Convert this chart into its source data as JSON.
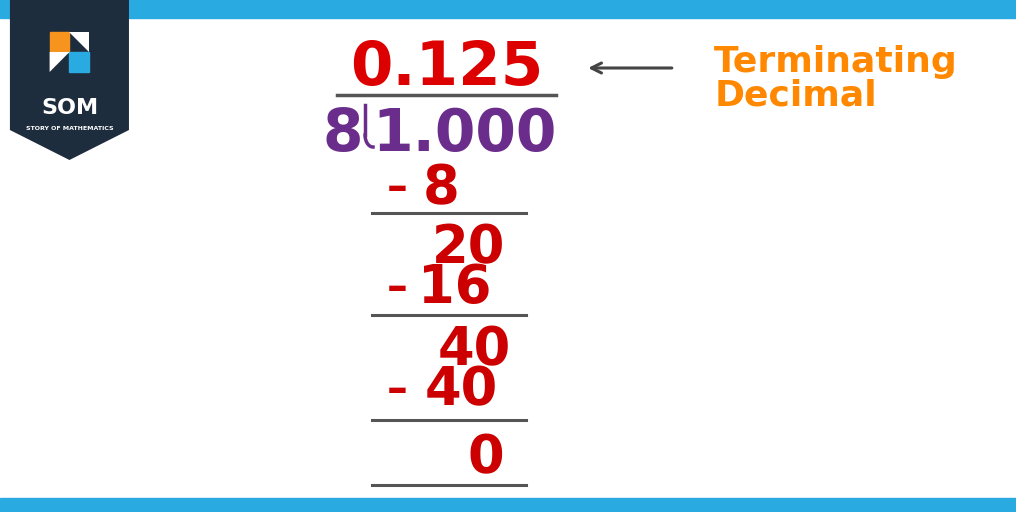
{
  "white_bg": "#ffffff",
  "title_color": "#dd0000",
  "divisor_color": "#6b2d8b",
  "dividend_color": "#6b2d8b",
  "steps_color": "#cc0000",
  "line_color": "#555555",
  "arrow_color": "#444444",
  "label_color": "#ff8800",
  "cyan_bar_color": "#29abe2",
  "som_bg_color": "#1e2d3d",
  "quotient": "0.125",
  "divisor": "8",
  "dividend": "1.000",
  "font_size_quotient": 44,
  "font_size_main": 42,
  "font_size_steps": 38,
  "font_size_label": 26,
  "font_size_minus": 30
}
